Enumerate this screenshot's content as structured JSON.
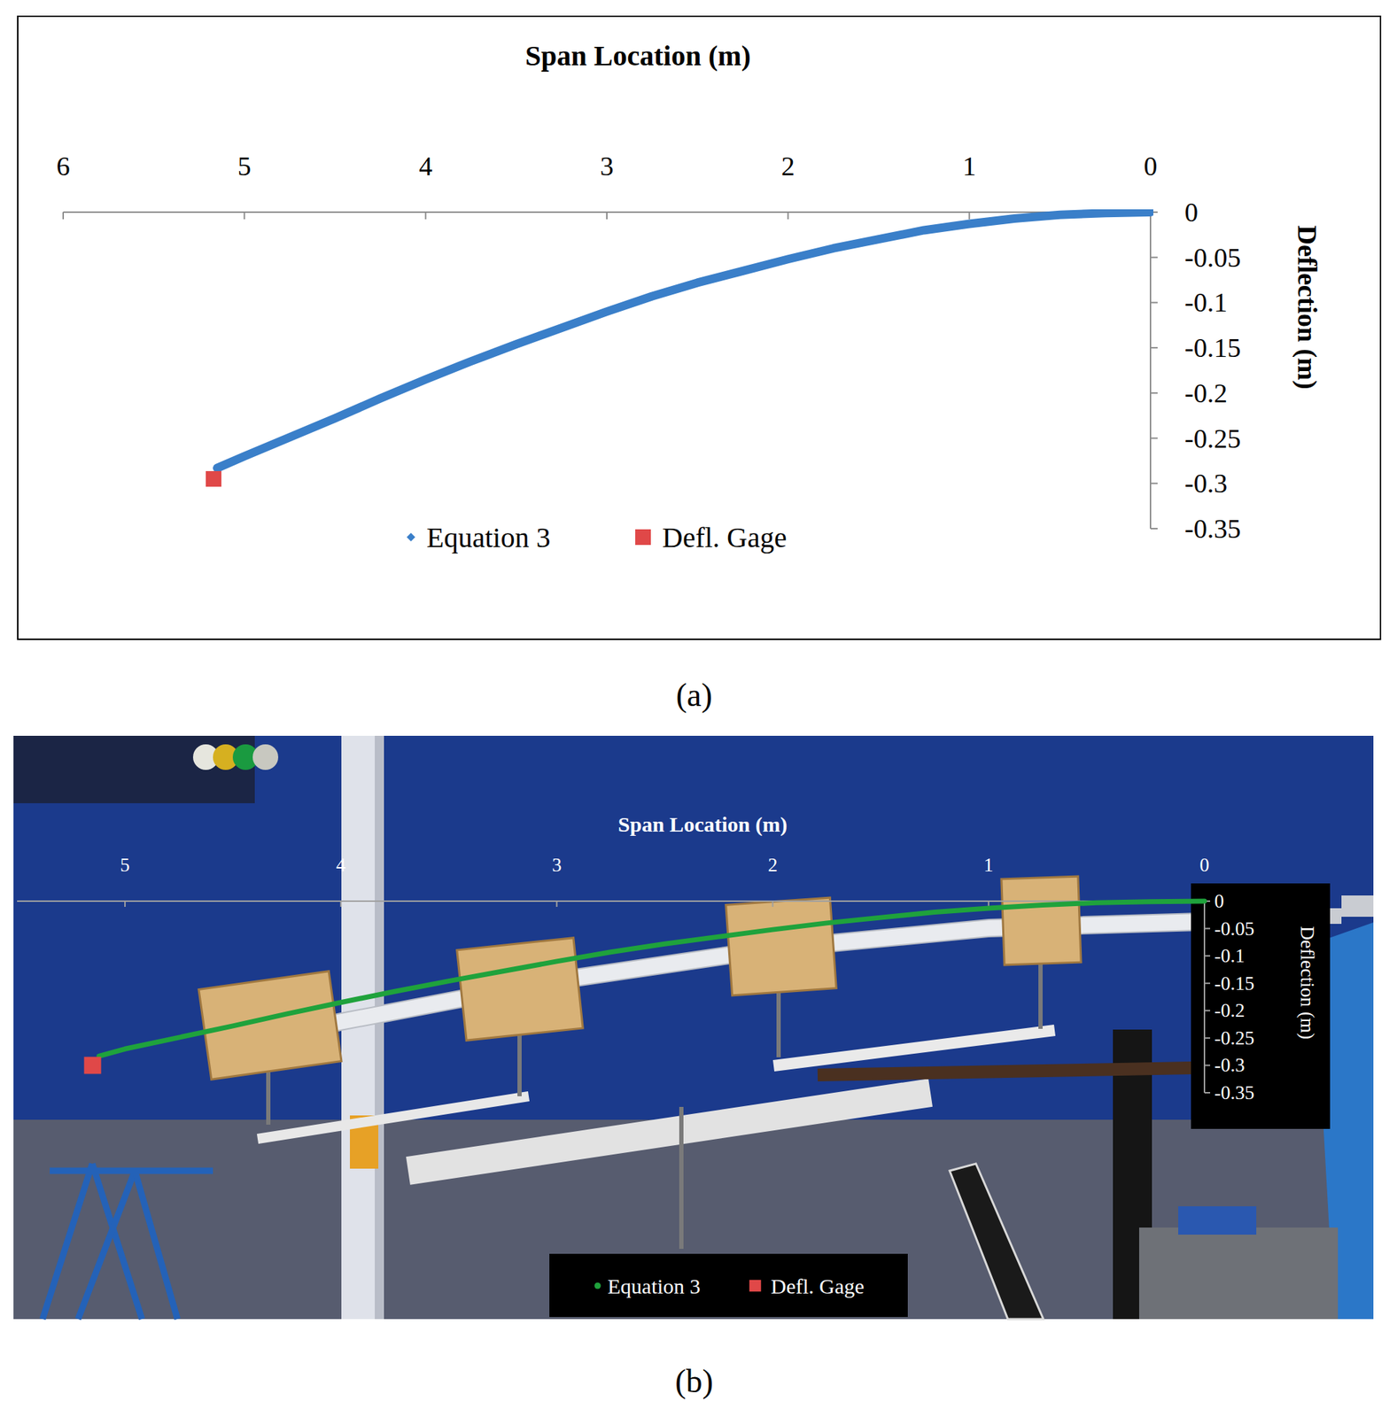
{
  "chart_data": [
    {
      "type": "scatter",
      "x_label": "Span Location (m)",
      "y_label": "Deflection (m)",
      "annotations": [
        "(a)"
      ],
      "xlim": [
        6,
        0
      ],
      "xticks": [
        6,
        5,
        4,
        3,
        2,
        1,
        0
      ],
      "ylim": [
        -0.35,
        0
      ],
      "yticks": [
        0,
        -0.05,
        -0.1,
        -0.15,
        -0.2,
        -0.25,
        -0.3,
        -0.35
      ],
      "legend": "bottom",
      "series": [
        {
          "name": "Equation 3",
          "type": "line",
          "marker": "diamond",
          "color": "#3a7fc9",
          "x": [
            0,
            0.25,
            0.5,
            0.75,
            1,
            1.25,
            1.5,
            1.75,
            2,
            2.25,
            2.5,
            2.75,
            3,
            3.25,
            3.5,
            3.75,
            4,
            4.25,
            4.5,
            4.75,
            5,
            5.15
          ],
          "values": [
            0,
            -0.001,
            -0.003,
            -0.007,
            -0.013,
            -0.02,
            -0.03,
            -0.04,
            -0.052,
            -0.065,
            -0.078,
            -0.093,
            -0.11,
            -0.128,
            -0.146,
            -0.165,
            -0.185,
            -0.206,
            -0.228,
            -0.249,
            -0.27,
            -0.283
          ]
        },
        {
          "name": "Defl. Gage",
          "type": "scatter",
          "marker": "square",
          "color": "#e04848",
          "x": [
            5.17
          ],
          "values": [
            -0.295
          ]
        }
      ]
    },
    {
      "type": "scatter",
      "x_label": "Span Location (m)",
      "y_label": "Deflection (m)",
      "annotations": [
        "(b)"
      ],
      "xlim": [
        5.5,
        0
      ],
      "xticks": [
        5,
        4,
        3,
        2,
        1,
        0
      ],
      "ylim": [
        -0.35,
        0
      ],
      "yticks": [
        0,
        -0.05,
        -0.1,
        -0.15,
        -0.2,
        -0.25,
        -0.3,
        -0.35
      ],
      "legend": "bottom",
      "series": [
        {
          "name": "Equation 3",
          "type": "line",
          "marker": "circle",
          "color": "#1fa23c",
          "x": [
            0,
            0.25,
            0.5,
            0.75,
            1,
            1.25,
            1.5,
            1.75,
            2,
            2.25,
            2.5,
            2.75,
            3,
            3.25,
            3.5,
            3.75,
            4,
            4.25,
            4.5,
            4.75,
            5,
            5.12
          ],
          "values": [
            0,
            -0.001,
            -0.003,
            -0.007,
            -0.013,
            -0.02,
            -0.03,
            -0.04,
            -0.052,
            -0.065,
            -0.078,
            -0.093,
            -0.11,
            -0.128,
            -0.146,
            -0.165,
            -0.185,
            -0.206,
            -0.228,
            -0.249,
            -0.27,
            -0.283
          ]
        },
        {
          "name": "Defl. Gage",
          "type": "scatter",
          "marker": "square",
          "color": "#e04848",
          "x": [
            5.15
          ],
          "values": [
            -0.3
          ]
        }
      ]
    }
  ]
}
